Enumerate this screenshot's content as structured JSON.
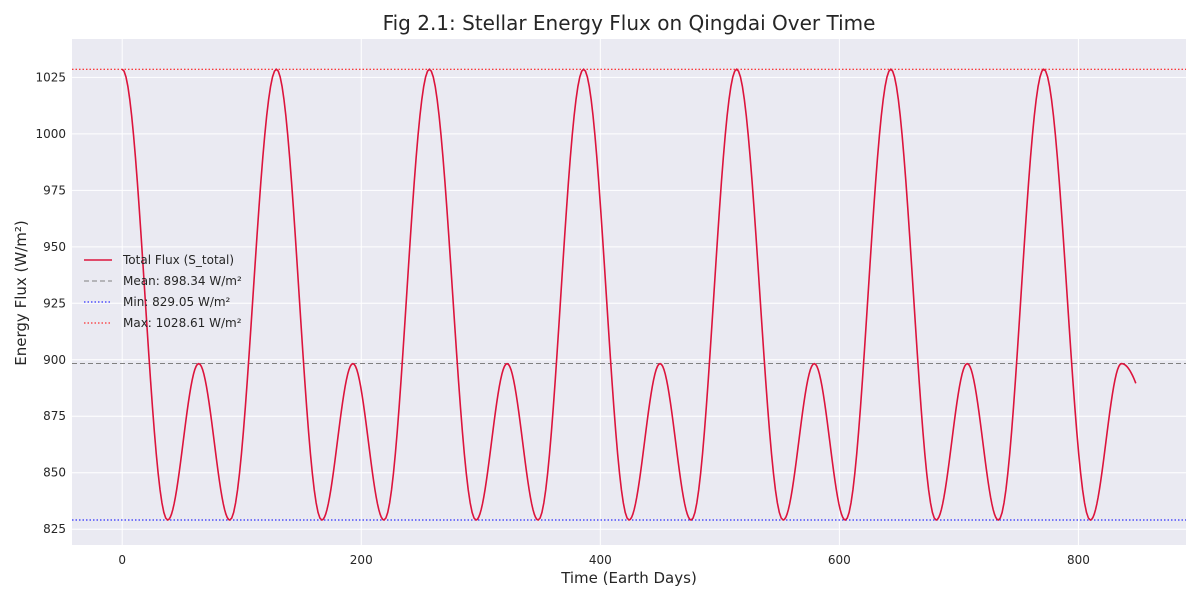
{
  "chart_data": {
    "type": "line",
    "title": "Fig 2.1: Stellar Energy Flux on Qingdai Over Time",
    "xlabel": "Time (Earth Days)",
    "ylabel": "Energy Flux (W/m²)",
    "xlim": [
      -42,
      890
    ],
    "ylim": [
      818,
      1042
    ],
    "xticks": [
      0,
      200,
      400,
      600,
      800
    ],
    "xtick_labels": [
      "0",
      "200",
      "400",
      "600",
      "800"
    ],
    "yticks": [
      825,
      850,
      875,
      900,
      925,
      950,
      975,
      1000,
      1025
    ],
    "ytick_labels": [
      "825",
      "850",
      "875",
      "900",
      "925",
      "950",
      "975",
      "1000",
      "1025"
    ],
    "grid": true,
    "legend_position": "center-left",
    "series": [
      {
        "name": "Total Flux (S_total)",
        "color": "#dc143c",
        "style": "solid",
        "x": [
          0,
          38,
          64,
          90,
          129,
          167,
          193,
          219,
          257,
          296,
          322,
          348,
          386,
          424,
          450,
          476,
          514,
          553,
          579,
          605,
          643,
          681,
          707,
          733,
          771,
          810,
          836,
          848
        ],
        "y": [
          1028.6,
          829.05,
          898.3,
          829.05,
          1028.6,
          829.05,
          898.3,
          829.05,
          1028.6,
          829.05,
          898.3,
          829.05,
          1028.6,
          829.05,
          898.3,
          829.05,
          1028.6,
          829.05,
          898.3,
          829.05,
          1028.6,
          829.05,
          898.3,
          829.05,
          1028.6,
          829.05,
          898.3,
          875.3
        ]
      }
    ],
    "reference_lines": [
      {
        "name": "Mean: 898.34 W/m²",
        "value": 898.34,
        "color": "#808080",
        "style": "dashed"
      },
      {
        "name": "Min: 829.05 W/m²",
        "value": 829.05,
        "color": "#0000ff",
        "style": "dotted"
      },
      {
        "name": "Max: 1028.61 W/m²",
        "value": 1028.61,
        "color": "#ff0000",
        "style": "dotted"
      }
    ],
    "colors": {
      "plot_background": "#eaeaf2",
      "grid": "#ffffff"
    }
  }
}
